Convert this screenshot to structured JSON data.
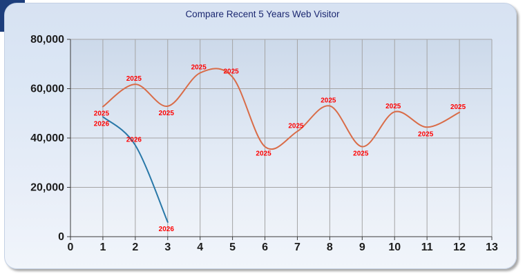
{
  "window": {
    "background_color": "#ffffff",
    "corner_accent_color": "#1d3e7c"
  },
  "chart": {
    "title_color": "#1b2770",
    "panel_bg_top": "#d7e2f2",
    "panel_bg_bottom": "#f1f5fb",
    "plot_bg_top": "#ccd9ea",
    "plot_bg_bottom": "#eff3f9",
    "grid_color": "#a4a4a4",
    "axis_color": "#3a3a3a"
  },
  "chart_data": {
    "type": "line",
    "title": "Compare Recent 5 Years Web Visitor",
    "xlabel": "",
    "ylabel": "",
    "xlim": [
      0,
      13
    ],
    "ylim": [
      0,
      80000
    ],
    "x_ticks": [
      0,
      1,
      2,
      3,
      4,
      5,
      6,
      7,
      8,
      9,
      10,
      11,
      12,
      13
    ],
    "x_tick_labels": [
      "0",
      "1",
      "2",
      "3",
      "4",
      "5",
      "6",
      "7",
      "8",
      "9",
      "10",
      "11",
      "12",
      "13"
    ],
    "y_ticks": [
      0,
      20000,
      40000,
      60000,
      80000
    ],
    "y_tick_labels": [
      "0",
      "20,000",
      "40,000",
      "60,000",
      "80,000"
    ],
    "grid": true,
    "curve": "spline",
    "legend": "none",
    "series": [
      {
        "name": "2025",
        "color": "#d96c48",
        "point_label": "2025",
        "label_color": "#ff0000",
        "x": [
          1,
          2,
          3,
          4,
          5,
          6,
          7,
          8,
          9,
          10,
          11,
          12
        ],
        "values": [
          52700,
          61800,
          52900,
          66400,
          64700,
          36500,
          42700,
          53000,
          36500,
          50600,
          44400,
          50400
        ],
        "label_pos": [
          "below",
          "above",
          "below",
          "above",
          "above",
          "below",
          "above",
          "above",
          "below",
          "above",
          "below",
          "above"
        ]
      },
      {
        "name": "2026",
        "color": "#2978a8",
        "point_label": "2026",
        "label_color": "#ff0000",
        "x": [
          1,
          2,
          3
        ],
        "values": [
          48600,
          37100,
          5900
        ],
        "label_pos": [
          "below",
          "above",
          "below"
        ]
      }
    ]
  }
}
